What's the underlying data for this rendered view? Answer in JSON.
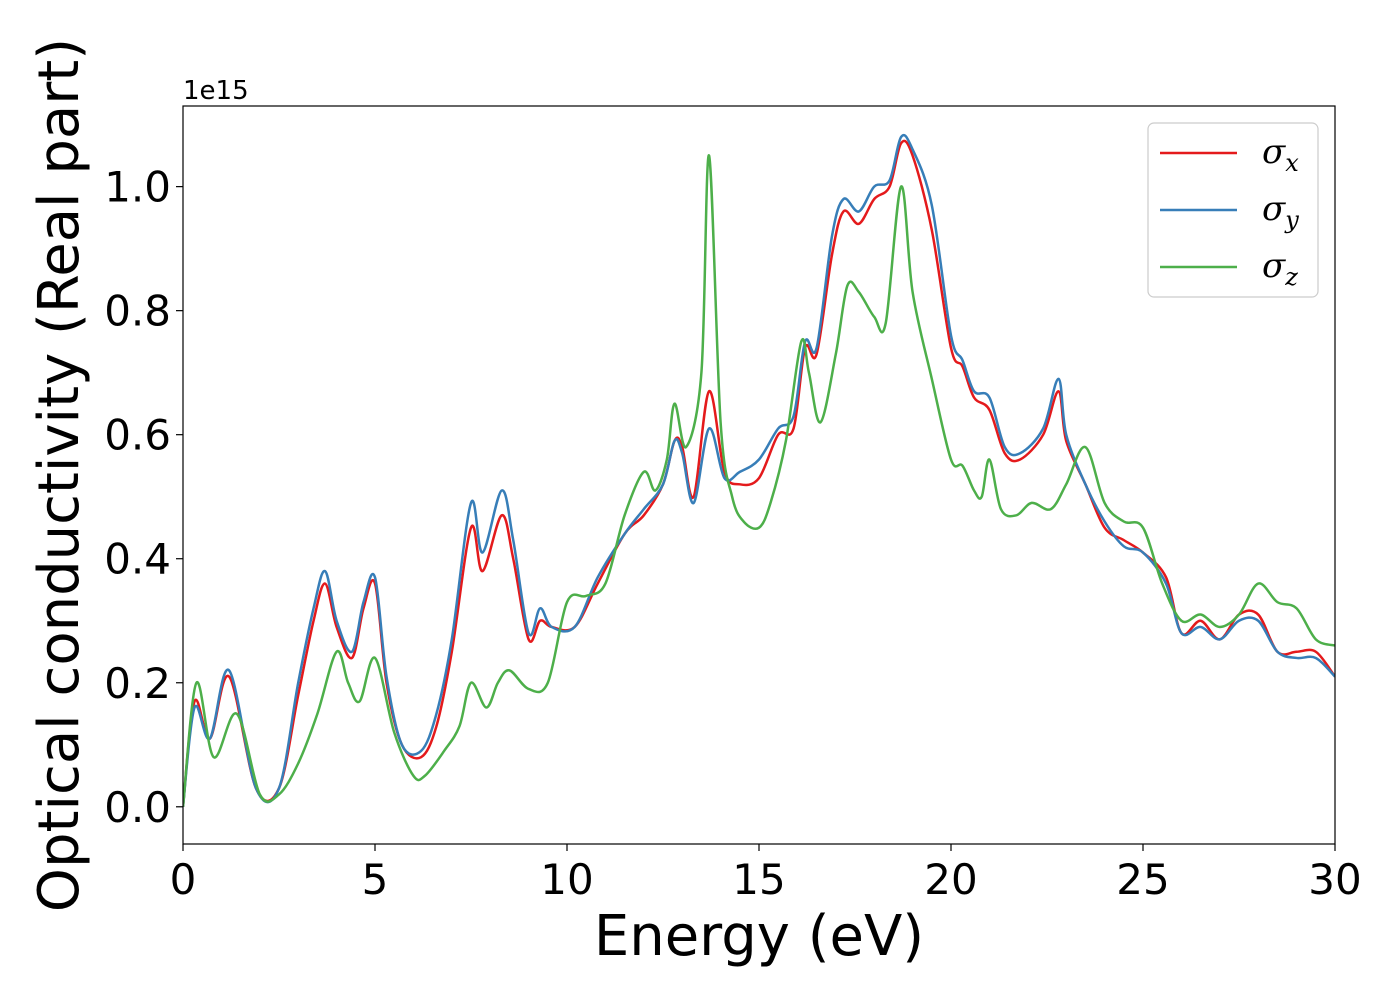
{
  "chart_data": {
    "type": "line",
    "xlabel": "Energy (eV)",
    "ylabel": "Optical conductivity (Real part)",
    "y_offset_label": "1e15",
    "xlim": [
      0,
      30
    ],
    "ylim": [
      -0.06,
      1.13
    ],
    "x_ticks": [
      0,
      5,
      10,
      15,
      20,
      25,
      30
    ],
    "x_tick_labels": [
      "0",
      "5",
      "10",
      "15",
      "20",
      "25",
      "30"
    ],
    "y_ticks": [
      0.0,
      0.2,
      0.4,
      0.6,
      0.8,
      1.0
    ],
    "y_tick_labels": [
      "0.0",
      "0.2",
      "0.4",
      "0.6",
      "0.8",
      "1.0"
    ],
    "grid": false,
    "legend_position": "top-right",
    "series": [
      {
        "name": "σx",
        "symbol": "σ",
        "subscript": "x",
        "color": "#e41a1c",
        "x": [
          0,
          0.3,
          0.7,
          1.2,
          1.9,
          2.5,
          3.0,
          3.4,
          3.7,
          4.0,
          4.4,
          4.7,
          5.0,
          5.3,
          5.7,
          6.2,
          6.6,
          7.0,
          7.5,
          7.8,
          8.3,
          8.6,
          9.0,
          9.3,
          9.6,
          10.2,
          10.8,
          11.5,
          12.0,
          12.5,
          12.8,
          13.0,
          13.3,
          13.7,
          14.1,
          14.5,
          15.0,
          15.5,
          15.9,
          16.2,
          16.5,
          16.9,
          17.2,
          17.6,
          18.0,
          18.4,
          18.7,
          19.0,
          19.5,
          20.0,
          20.3,
          20.6,
          21.0,
          21.4,
          21.8,
          22.4,
          22.8,
          23.0,
          23.5,
          24.0,
          24.5,
          25.0,
          25.6,
          26.0,
          26.5,
          27.0,
          27.5,
          28.0,
          28.5,
          29.0,
          29.5,
          30.0
        ],
        "y": [
          0.0,
          0.17,
          0.11,
          0.21,
          0.03,
          0.03,
          0.18,
          0.3,
          0.36,
          0.29,
          0.24,
          0.32,
          0.36,
          0.2,
          0.1,
          0.08,
          0.13,
          0.25,
          0.45,
          0.38,
          0.47,
          0.4,
          0.27,
          0.3,
          0.29,
          0.29,
          0.36,
          0.44,
          0.47,
          0.52,
          0.59,
          0.58,
          0.5,
          0.67,
          0.54,
          0.52,
          0.53,
          0.6,
          0.61,
          0.74,
          0.73,
          0.89,
          0.96,
          0.94,
          0.98,
          1.0,
          1.07,
          1.05,
          0.93,
          0.74,
          0.71,
          0.66,
          0.64,
          0.57,
          0.56,
          0.6,
          0.67,
          0.59,
          0.52,
          0.45,
          0.43,
          0.41,
          0.37,
          0.28,
          0.3,
          0.27,
          0.31,
          0.31,
          0.25,
          0.25,
          0.25,
          0.21
        ]
      },
      {
        "name": "σy",
        "symbol": "σ",
        "subscript": "y",
        "color": "#377eb8",
        "x": [
          0,
          0.3,
          0.7,
          1.2,
          1.9,
          2.5,
          3.0,
          3.4,
          3.7,
          4.0,
          4.4,
          4.7,
          5.0,
          5.3,
          5.7,
          6.2,
          6.6,
          7.0,
          7.5,
          7.8,
          8.3,
          8.6,
          9.0,
          9.3,
          9.6,
          10.2,
          10.8,
          11.5,
          12.0,
          12.5,
          12.8,
          13.0,
          13.3,
          13.7,
          14.1,
          14.5,
          15.0,
          15.5,
          15.9,
          16.2,
          16.5,
          16.9,
          17.2,
          17.6,
          18.0,
          18.4,
          18.7,
          19.0,
          19.5,
          20.0,
          20.3,
          20.6,
          21.0,
          21.4,
          21.8,
          22.4,
          22.8,
          23.0,
          23.5,
          24.0,
          24.5,
          25.0,
          25.6,
          26.0,
          26.5,
          27.0,
          27.5,
          28.0,
          28.5,
          29.0,
          29.5,
          30.0
        ],
        "y": [
          0.0,
          0.16,
          0.11,
          0.22,
          0.03,
          0.03,
          0.2,
          0.32,
          0.38,
          0.3,
          0.25,
          0.33,
          0.37,
          0.21,
          0.1,
          0.09,
          0.15,
          0.27,
          0.49,
          0.41,
          0.51,
          0.43,
          0.28,
          0.32,
          0.29,
          0.29,
          0.37,
          0.44,
          0.48,
          0.52,
          0.59,
          0.57,
          0.49,
          0.61,
          0.53,
          0.54,
          0.56,
          0.61,
          0.63,
          0.75,
          0.74,
          0.92,
          0.98,
          0.96,
          1.0,
          1.01,
          1.08,
          1.06,
          0.97,
          0.76,
          0.72,
          0.67,
          0.66,
          0.58,
          0.57,
          0.61,
          0.69,
          0.6,
          0.52,
          0.46,
          0.42,
          0.41,
          0.36,
          0.28,
          0.29,
          0.27,
          0.3,
          0.3,
          0.25,
          0.24,
          0.24,
          0.21
        ]
      },
      {
        "name": "σz",
        "symbol": "σ",
        "subscript": "z",
        "color": "#4daf4a",
        "x": [
          0,
          0.35,
          0.8,
          1.4,
          2.0,
          2.5,
          3.0,
          3.5,
          4.0,
          4.3,
          4.6,
          5.0,
          5.5,
          6.0,
          6.3,
          6.8,
          7.2,
          7.5,
          7.9,
          8.2,
          8.5,
          9.0,
          9.5,
          10.0,
          10.5,
          11.0,
          11.5,
          12.0,
          12.3,
          12.6,
          12.8,
          13.1,
          13.5,
          13.7,
          14.0,
          14.3,
          14.6,
          15.0,
          15.3,
          15.7,
          16.1,
          16.3,
          16.6,
          17.0,
          17.3,
          17.6,
          18.0,
          18.3,
          18.7,
          19.0,
          19.5,
          20.0,
          20.3,
          20.6,
          20.8,
          21.0,
          21.3,
          21.7,
          22.1,
          22.6,
          23.0,
          23.5,
          24.0,
          24.5,
          25.0,
          25.5,
          26.0,
          26.5,
          27.0,
          27.5,
          28.0,
          28.5,
          29.0,
          29.5,
          30.0
        ],
        "y": [
          0.0,
          0.2,
          0.08,
          0.15,
          0.02,
          0.02,
          0.07,
          0.15,
          0.25,
          0.2,
          0.17,
          0.24,
          0.12,
          0.05,
          0.05,
          0.09,
          0.13,
          0.2,
          0.16,
          0.2,
          0.22,
          0.19,
          0.2,
          0.33,
          0.34,
          0.36,
          0.47,
          0.54,
          0.51,
          0.56,
          0.65,
          0.58,
          0.7,
          1.05,
          0.62,
          0.5,
          0.46,
          0.45,
          0.49,
          0.59,
          0.75,
          0.7,
          0.62,
          0.73,
          0.84,
          0.83,
          0.79,
          0.78,
          1.0,
          0.83,
          0.69,
          0.56,
          0.55,
          0.51,
          0.5,
          0.56,
          0.48,
          0.47,
          0.49,
          0.48,
          0.52,
          0.58,
          0.49,
          0.46,
          0.45,
          0.36,
          0.3,
          0.31,
          0.29,
          0.31,
          0.36,
          0.33,
          0.32,
          0.27,
          0.26
        ]
      }
    ]
  }
}
